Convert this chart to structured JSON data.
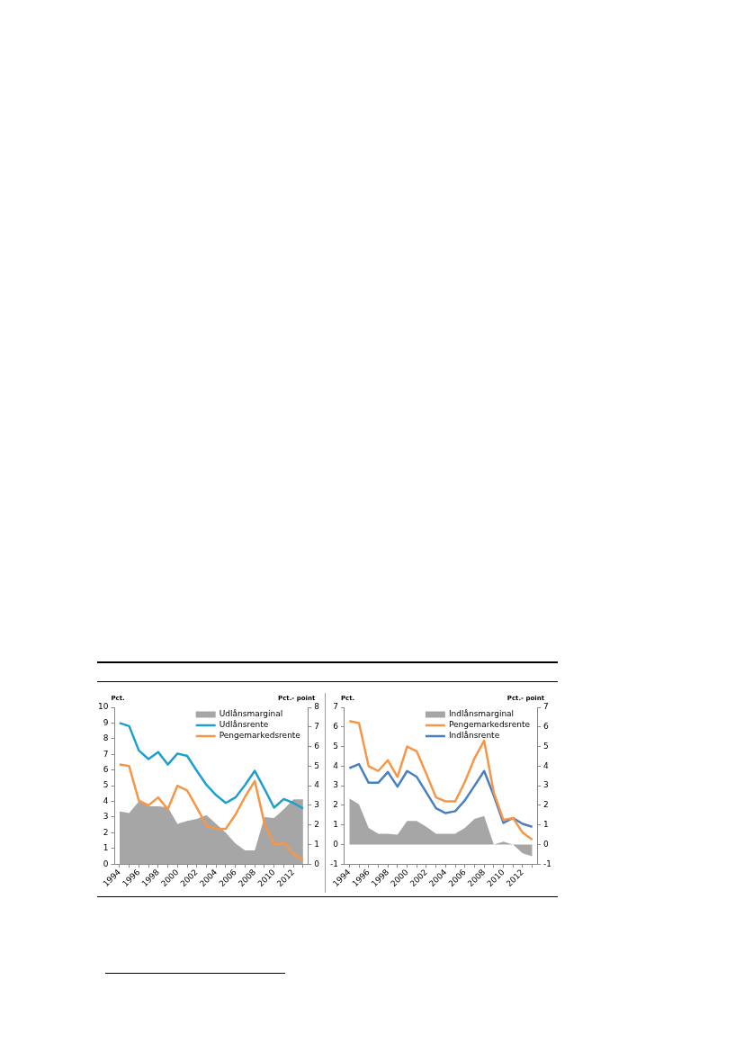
{
  "chart_data": [
    {
      "type": "line",
      "ylabel": "Pct.",
      "y2label": "Pct.- point",
      "categories": [
        "1994",
        null,
        "1996",
        null,
        "1998",
        null,
        "2000",
        null,
        "2002",
        null,
        "2004",
        null,
        "2006",
        null,
        "2008",
        null,
        "2010",
        null,
        "2012",
        null
      ],
      "series": [
        {
          "name": "Udlånsmarginal",
          "type": "area",
          "axis": "y2",
          "color": "#a6a6a6",
          "values": [
            2.7,
            2.6,
            3.2,
            2.95,
            2.95,
            2.9,
            2.05,
            2.2,
            2.3,
            2.5,
            2.05,
            1.6,
            1.05,
            0.7,
            0.7,
            2.4,
            2.35,
            2.8,
            3.3,
            3.3
          ]
        },
        {
          "name": "Udlånsrente",
          "color": "#1fa0cc",
          "values": [
            9.0,
            8.8,
            7.25,
            6.7,
            7.15,
            6.35,
            7.05,
            6.9,
            5.95,
            5.05,
            4.4,
            3.9,
            4.25,
            5.05,
            5.95,
            4.8,
            3.6,
            4.15,
            3.9,
            3.55
          ]
        },
        {
          "name": "Pengemarkedsrente",
          "color": "#f79646",
          "values": [
            6.35,
            6.25,
            4.05,
            3.75,
            4.25,
            3.5,
            5.0,
            4.7,
            3.6,
            2.45,
            2.25,
            2.25,
            3.15,
            4.3,
            5.3,
            2.6,
            1.25,
            1.35,
            0.65,
            0.25
          ]
        }
      ],
      "ylim": [
        0,
        10
      ],
      "yticks": [
        0,
        1,
        2,
        3,
        4,
        5,
        6,
        7,
        8,
        9,
        10
      ],
      "y2lim": [
        0,
        8
      ],
      "y2ticks": [
        0,
        1,
        2,
        3,
        4,
        5,
        6,
        7,
        8
      ],
      "legend": "top right"
    },
    {
      "type": "line",
      "ylabel": "Pct.",
      "y2label": "Pct.- point",
      "categories": [
        "1994",
        null,
        "1996",
        null,
        "1998",
        null,
        "2000",
        null,
        "2002",
        null,
        "2004",
        null,
        "2006",
        null,
        "2008",
        null,
        "2010",
        null,
        "2012",
        null
      ],
      "series": [
        {
          "name": "Indlånsmarginal",
          "type": "area",
          "axis": "y2",
          "color": "#a6a6a6",
          "values": [
            2.35,
            2.05,
            0.85,
            0.55,
            0.55,
            0.5,
            1.2,
            1.2,
            0.9,
            0.55,
            0.55,
            0.55,
            0.85,
            1.3,
            1.45,
            0,
            0.15,
            0,
            -0.45,
            -0.6
          ]
        },
        {
          "name": "Pengemarkedsrente",
          "color": "#f79646",
          "values": [
            6.3,
            6.2,
            4.0,
            3.75,
            4.3,
            3.45,
            5.0,
            4.75,
            3.6,
            2.4,
            2.2,
            2.2,
            3.2,
            4.4,
            5.3,
            2.65,
            1.25,
            1.35,
            0.6,
            0.25
          ]
        },
        {
          "name": "Indlånsrente",
          "color": "#4a7fc1",
          "values": [
            3.9,
            4.1,
            3.15,
            3.15,
            3.7,
            2.95,
            3.75,
            3.45,
            2.65,
            1.85,
            1.6,
            1.7,
            2.25,
            3.0,
            3.75,
            2.5,
            1.1,
            1.35,
            1.05,
            0.9
          ]
        }
      ],
      "ylim": [
        -1,
        7
      ],
      "yticks": [
        -1,
        0,
        1,
        2,
        3,
        4,
        5,
        6,
        7
      ],
      "y2lim": [
        -1,
        7
      ],
      "y2ticks": [
        -1,
        0,
        1,
        2,
        3,
        4,
        5,
        6,
        7
      ],
      "legend": "top right"
    }
  ]
}
